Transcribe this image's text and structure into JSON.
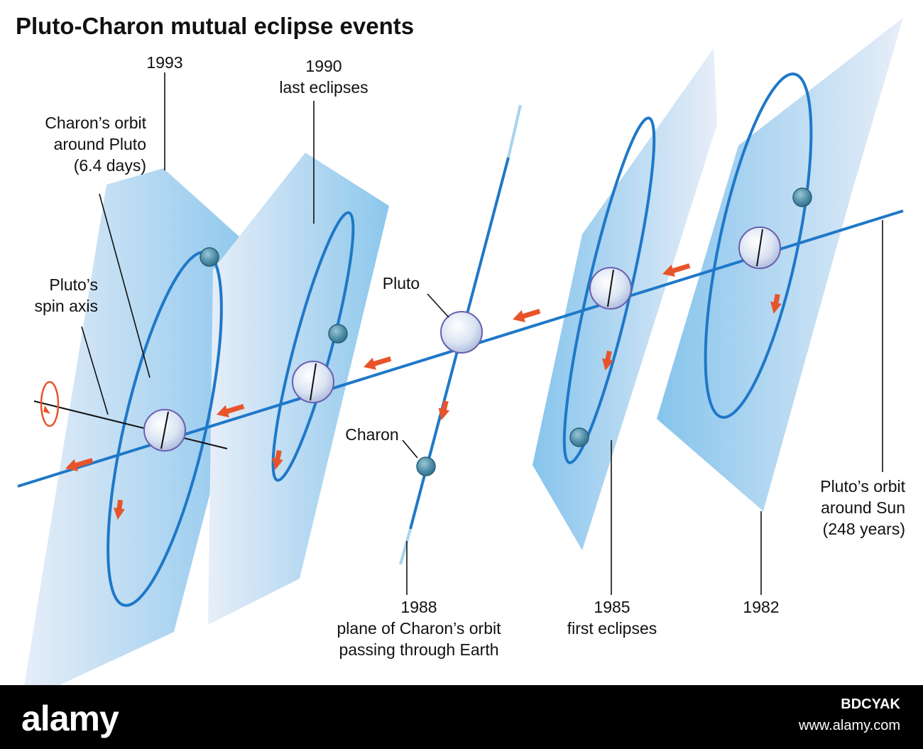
{
  "title": "Pluto-Charon mutual eclipse events",
  "labels": {
    "y1993": "1993",
    "y1990_year": "1990",
    "y1990_note": "last eclipses",
    "charon_orbit_1": "Charon’s orbit",
    "charon_orbit_2": "around Pluto",
    "charon_orbit_3": "(6.4 days)",
    "spin_1": "Pluto’s",
    "spin_2": "spin axis",
    "pluto": "Pluto",
    "charon": "Charon",
    "y1988_year": "1988",
    "y1988_note_1": "plane of Charon’s orbit",
    "y1988_note_2": "passing through Earth",
    "y1985_year": "1985",
    "y1985_note": "first eclipses",
    "y1982": "1982",
    "sun_orbit_1": "Pluto’s orbit",
    "sun_orbit_2": "around Sun",
    "sun_orbit_3": "(248 years)"
  },
  "footer": {
    "brand": "alamy",
    "image_id": "BDCYAK",
    "url": "www.alamy.com"
  },
  "colors": {
    "orbit": "#1f78c8",
    "arrow": "#e8542a",
    "plane_dark": "#8cc8ee",
    "plane_light": "#e3ecf7",
    "charon_fill": "#4f8ea8",
    "pluto_fill": "#dfe6f4"
  },
  "icons": {
    "rotation": "rotation-arrow-icon",
    "direction": "direction-arrow-icon"
  }
}
